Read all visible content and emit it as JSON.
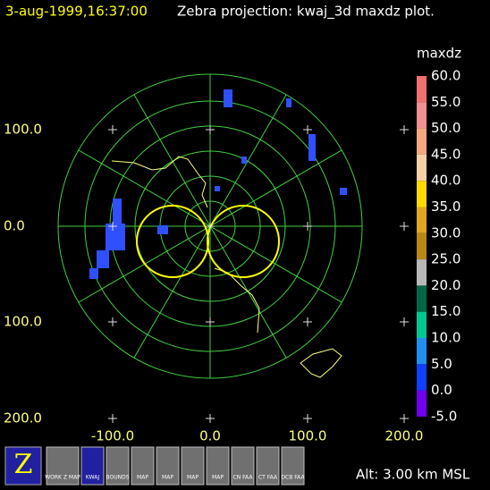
{
  "header": {
    "timestamp": "3-aug-1999,16:37:00",
    "title": "Zebra projection: kwaj_3d maxdz plot."
  },
  "axes": {
    "x_labels": [
      "-100.0",
      "0.0",
      "100.0",
      "200.0"
    ],
    "y_labels": [
      "100.0",
      "0.0",
      "100.0",
      "200.0"
    ]
  },
  "colorbar": {
    "title": "maxdz",
    "labels": [
      "60.0",
      "55.0",
      "50.0",
      "45.0",
      "40.0",
      "35.0",
      "30.0",
      "25.0",
      "20.0",
      "15.0",
      "10.0",
      "5.0",
      "0.0",
      "-5.0"
    ],
    "colors": [
      "#f07070",
      "#f09090",
      "#f4a880",
      "#f8d0a8",
      "#ffd800",
      "#e0a820",
      "#b88810",
      "#b8b8b8",
      "#006848",
      "#00c890",
      "#2090f0",
      "#1040ff",
      "#7000f0"
    ]
  },
  "toolbar": {
    "icons": [
      "WORK Z MAP",
      "KWAJ",
      "BOUNDS",
      "MAP",
      "MAP",
      "MAP",
      "MAP",
      "CN FAA",
      "CT FAA",
      "DCB FAA"
    ]
  },
  "status": {
    "altitude": "Alt: 3.00 km MSL"
  }
}
